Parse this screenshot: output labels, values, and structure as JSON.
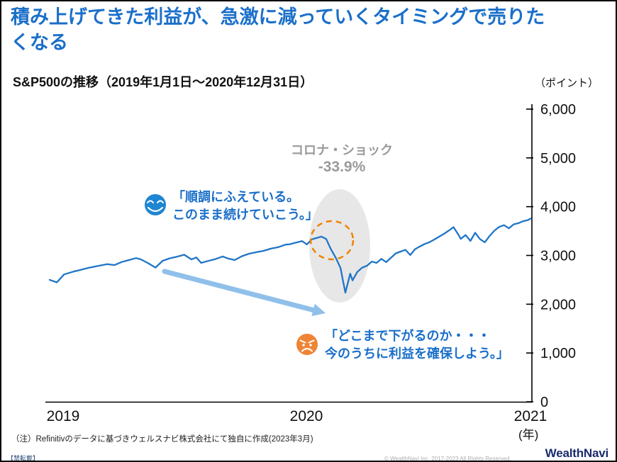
{
  "slide": {
    "title_line1": "積み上げてきた利益が、急激に減っていくタイミングで売りた",
    "title_line2": "くなる",
    "footnote": "（注）Refinitivのデータに基づきウェルスナビ株式会社にて独自に作成(2023年3月)",
    "no_reproduction_label": "【禁転載】",
    "copyright": "© WealthNavi Inc. 2017-2023 All Rights Reserved.",
    "logo_text": "WealthNavi"
  },
  "colors": {
    "title_blue": "#1A6FC9",
    "line_blue": "#2075C7",
    "arrow_blue": "#8FC0EA",
    "happy_face_blue": "#1E86D2",
    "sad_face_orange": "#EE8435",
    "shock_gray": "#9A9A9A",
    "highlight_ellipse_gray": "#E4E4E4",
    "dashed_circle_orange": "#F08300",
    "logo_navy": "#1B2B6B"
  },
  "chart_data": {
    "type": "line",
    "title": "S&P500の推移（2019年1月1日～2020年12月31日）",
    "unit_label": "（ポイント）",
    "x_unit_label": "(年)",
    "ylim": [
      0,
      6000
    ],
    "yticks": [
      0,
      1000,
      2000,
      3000,
      4000,
      5000,
      6000
    ],
    "xticks": [
      "2019",
      "2020",
      "2021"
    ],
    "grid": false,
    "legend": "none",
    "series": [
      {
        "name": "S&P500",
        "x": [
          2019.0,
          2019.03,
          2019.06,
          2019.1,
          2019.13,
          2019.16,
          2019.2,
          2019.24,
          2019.27,
          2019.3,
          2019.33,
          2019.36,
          2019.38,
          2019.41,
          2019.44,
          2019.47,
          2019.5,
          2019.53,
          2019.56,
          2019.59,
          2019.61,
          2019.63,
          2019.66,
          2019.69,
          2019.72,
          2019.74,
          2019.77,
          2019.8,
          2019.83,
          2019.86,
          2019.89,
          2019.92,
          2019.95,
          2019.98,
          2020.0,
          2020.02,
          2020.05,
          2020.07,
          2020.09,
          2020.11,
          2020.13,
          2020.15,
          2020.17,
          2020.19,
          2020.21,
          2020.22,
          2020.23,
          2020.25,
          2020.26,
          2020.28,
          2020.3,
          2020.32,
          2020.34,
          2020.36,
          2020.38,
          2020.4,
          2020.42,
          2020.44,
          2020.46,
          2020.48,
          2020.5,
          2020.52,
          2020.54,
          2020.56,
          2020.58,
          2020.6,
          2020.62,
          2020.64,
          2020.66,
          2020.68,
          2020.7,
          2020.71,
          2020.73,
          2020.75,
          2020.77,
          2020.79,
          2020.81,
          2020.83,
          2020.85,
          2020.87,
          2020.89,
          2020.91,
          2020.93,
          2020.95,
          2020.97,
          2020.99,
          2021.0
        ],
        "values": [
          2500,
          2448,
          2610,
          2670,
          2706,
          2745,
          2784,
          2822,
          2803,
          2867,
          2905,
          2946,
          2918,
          2840,
          2752,
          2890,
          2942,
          2976,
          3014,
          2918,
          2960,
          2847,
          2888,
          2926,
          2979,
          2940,
          2905,
          2986,
          3037,
          3067,
          3094,
          3140,
          3168,
          3221,
          3231,
          3258,
          3295,
          3226,
          3330,
          3358,
          3386,
          3338,
          3128,
          2954,
          2741,
          2481,
          2237,
          2627,
          2488,
          2663,
          2750,
          2790,
          2875,
          2848,
          2930,
          2863,
          2955,
          3044,
          3080,
          3115,
          3009,
          3130,
          3185,
          3235,
          3271,
          3327,
          3385,
          3443,
          3508,
          3580,
          3427,
          3340,
          3419,
          3298,
          3465,
          3335,
          3270,
          3400,
          3509,
          3585,
          3621,
          3557,
          3638,
          3662,
          3703,
          3727,
          3756
        ]
      }
    ],
    "annotations": {
      "shock_label": "コロナ・ショック",
      "shock_value": "-33.9%",
      "happy_quote_line1": "「順調にふえている。",
      "happy_quote_line2": "このまま続けていこう。」",
      "sad_quote_line1": "「どこまで下がるのか・・・",
      "sad_quote_line2": "今のうちに利益を確保しよう。」"
    }
  }
}
